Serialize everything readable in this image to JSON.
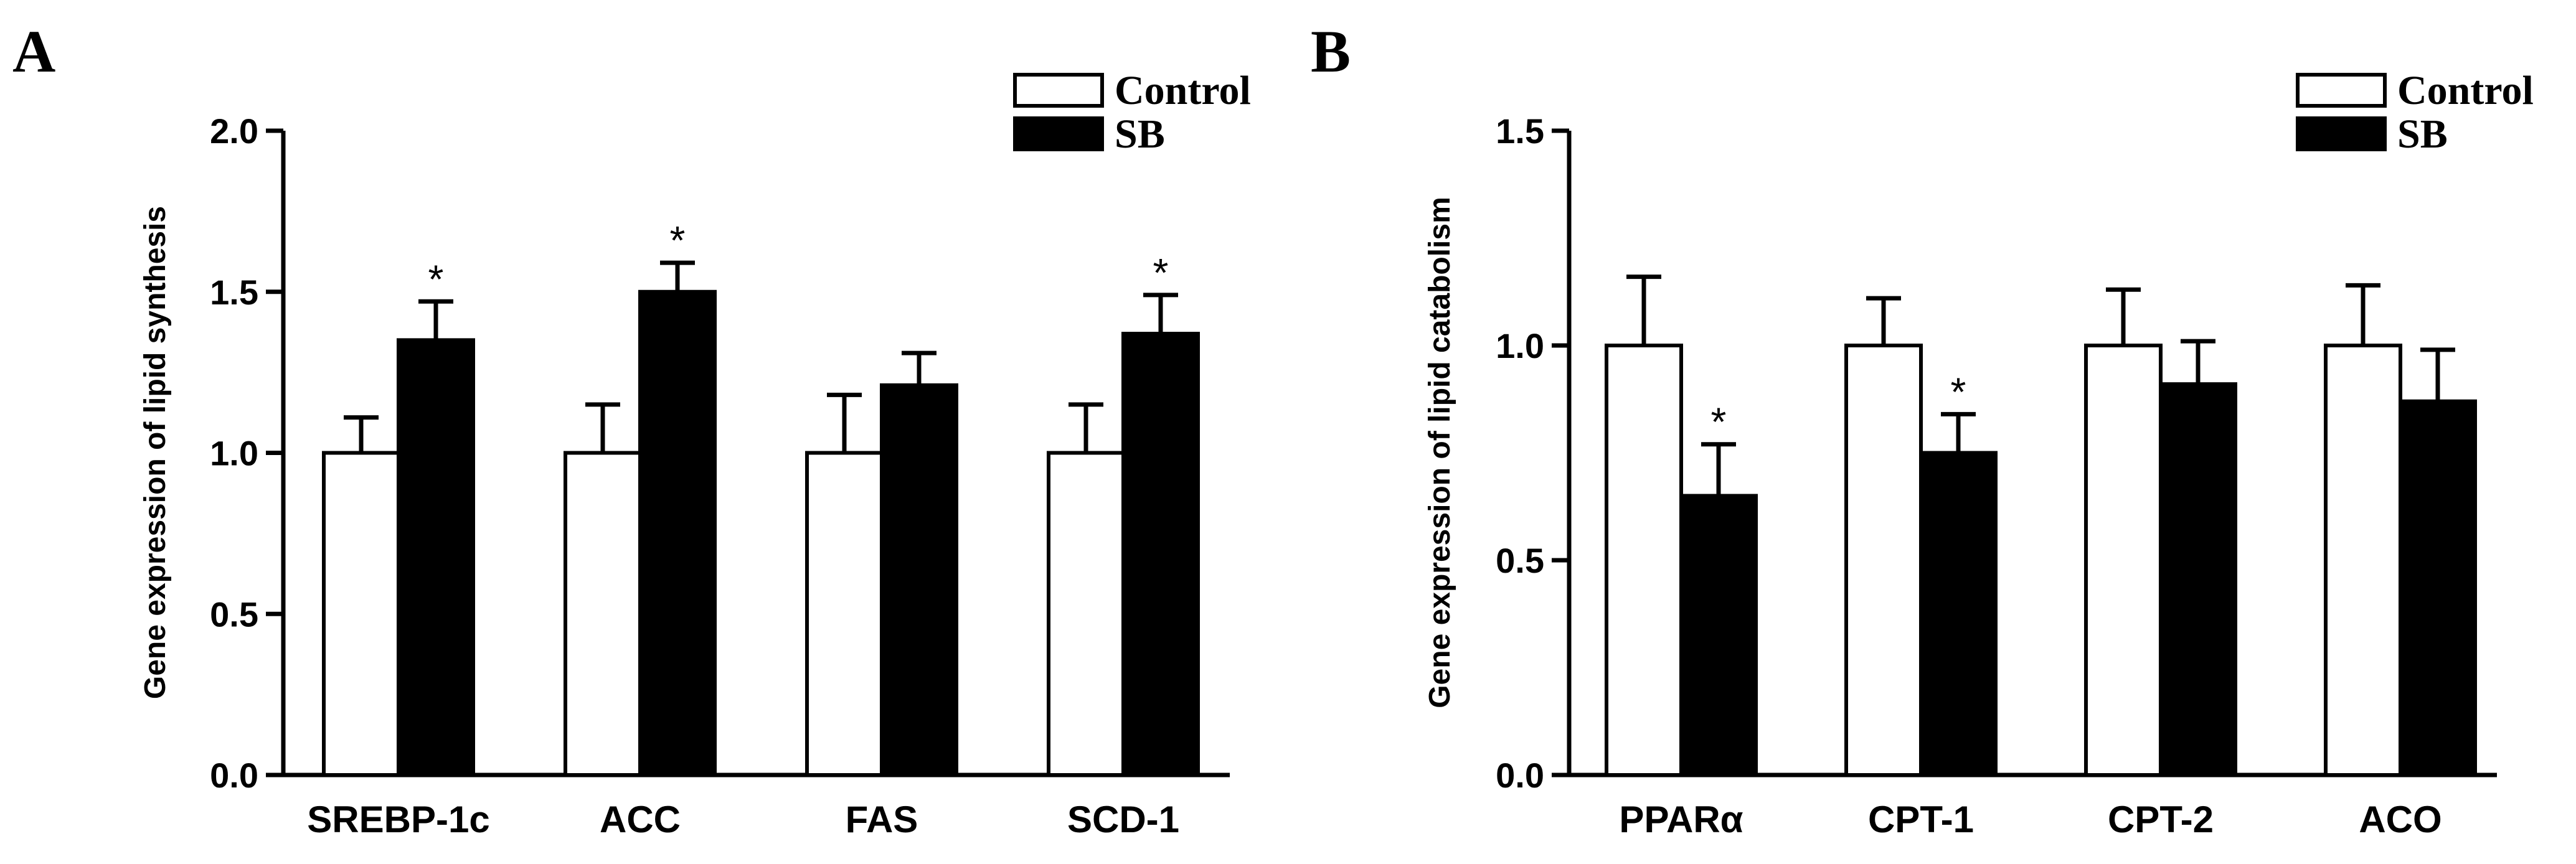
{
  "colors": {
    "control_fill": "#ffffff",
    "sb_fill": "#000000",
    "stroke": "#000000"
  },
  "chart_data": [
    {
      "panel": "A",
      "type": "bar",
      "ylabel": "Gene expression of lipid synthesis",
      "xlabel": "",
      "ylim": [
        0,
        2.0
      ],
      "yticks": [
        "0.0",
        "0.5",
        "1.0",
        "1.5",
        "2.0"
      ],
      "yticks_values": [
        0,
        0.5,
        1.0,
        1.5,
        2.0
      ],
      "categories": [
        "SREBP-1c",
        "ACC",
        "FAS",
        "SCD-1"
      ],
      "legend_position": "top-right",
      "series": [
        {
          "name": "Control",
          "values": [
            1.0,
            1.0,
            1.0,
            1.0
          ],
          "errors": [
            0.11,
            0.15,
            0.18,
            0.15
          ],
          "significance": [
            "",
            "",
            "",
            ""
          ]
        },
        {
          "name": "SB",
          "values": [
            1.35,
            1.5,
            1.21,
            1.37
          ],
          "errors": [
            0.12,
            0.09,
            0.1,
            0.12
          ],
          "significance": [
            "*",
            "*",
            "",
            "*"
          ]
        }
      ]
    },
    {
      "panel": "B",
      "type": "bar",
      "ylabel": "Gene expression of lipid catabolism",
      "xlabel": "",
      "ylim": [
        0,
        1.5
      ],
      "yticks": [
        "0.0",
        "0.5",
        "1.0",
        "1.5"
      ],
      "yticks_values": [
        0,
        0.5,
        1.0,
        1.5
      ],
      "categories": [
        "PPARα",
        "CPT-1",
        "CPT-2",
        "ACO"
      ],
      "legend_position": "top-right",
      "series": [
        {
          "name": "Control",
          "values": [
            1.0,
            1.0,
            1.0,
            1.0
          ],
          "errors": [
            0.16,
            0.11,
            0.13,
            0.14
          ],
          "significance": [
            "",
            "",
            "",
            ""
          ]
        },
        {
          "name": "SB",
          "values": [
            0.65,
            0.75,
            0.91,
            0.87
          ],
          "errors": [
            0.12,
            0.09,
            0.1,
            0.12
          ],
          "significance": [
            "*",
            "*",
            "",
            ""
          ]
        }
      ]
    }
  ]
}
